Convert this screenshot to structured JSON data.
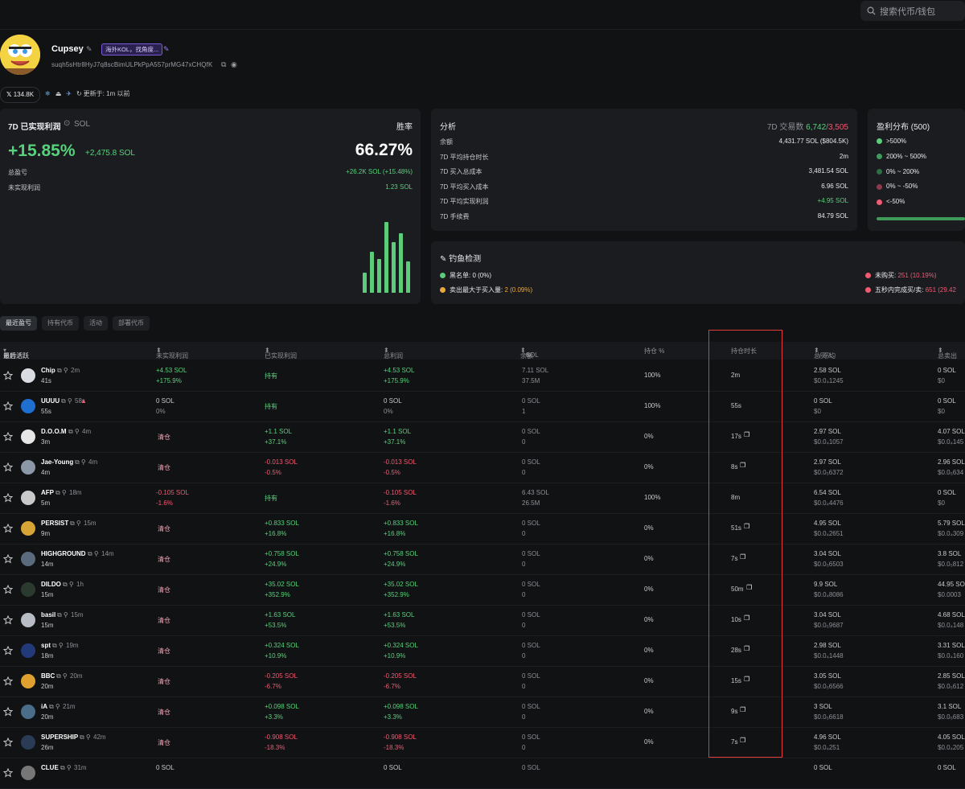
{
  "search": {
    "placeholder": "搜索代币/钱包"
  },
  "profile": {
    "name": "Cupsey",
    "tag": "海外KOL，找角度...",
    "address": "suqh5sHtr8HyJ7q8scBimULPkPpA557prMG47xCHQfK",
    "followers": "134.8K",
    "updated": "更新于: 1m 以前"
  },
  "pnl": {
    "title": "7D 已实现利润",
    "currency": "SOL",
    "winrate_label": "胜率",
    "pct": "+15.85%",
    "sol": "+2,475.8 SOL",
    "winrate": "66.27%",
    "total_label": "总盈亏",
    "total_value": "+26.2K SOL (+15.48%)",
    "unrealized_label": "未实现利润",
    "unrealized_value": "1.23 SOL",
    "bars": [
      0.28,
      0.58,
      0.48,
      1.0,
      0.72,
      0.84,
      0.44
    ]
  },
  "analysis": {
    "title": "分析",
    "trades_label": "7D 交易数",
    "buys": "6,742",
    "sells": "3,505",
    "rows": [
      {
        "k": "余额",
        "v": "4,431.77 SOL ($804.5K)"
      },
      {
        "k": "7D 平均持仓时长",
        "v": "2m"
      },
      {
        "k": "7D 买入总成本",
        "v": "3,481.54 SOL"
      },
      {
        "k": "7D 平均买入成本",
        "v": "6.96 SOL"
      },
      {
        "k": "7D 平均实现利润",
        "v": "+4.95 SOL"
      },
      {
        "k": "7D 手续费",
        "v": "84.79 SOL"
      }
    ]
  },
  "dist": {
    "title": "盈利分布 (500)",
    "items": [
      ">500%",
      "200% ~ 500%",
      "0% ~ 200%",
      "0% ~ -50%",
      "<-50%"
    ],
    "colors": [
      "#5ccb7a",
      "#3f9a5c",
      "#2f6b45",
      "#8a3a4a",
      "#f05b73"
    ]
  },
  "phishing": {
    "title": "钓鱼检测",
    "blacklist_label": "黑名单:",
    "blacklist": "0 (0%)",
    "sell_gt_buy_label": "卖出最大于买入量:",
    "sell_gt_buy": "2 (0.09%)",
    "not_bought_label": "未购买:",
    "not_bought": "251 (10.19%)",
    "fast_label": "五秒内完成买/卖:",
    "fast": "651 (29.42"
  },
  "tabs": [
    "最近盈亏",
    "持有代币",
    "活动",
    "部署代币"
  ],
  "headers": {
    "coin": "币种 / ",
    "last": "最后活跃",
    "unrealized": "未实现利润",
    "realized": "已实现利润",
    "total": "总利润",
    "balance": "余额",
    "balance_unit": "SOL",
    "hold_pct": "持仓 %",
    "hold_time": "持仓时长",
    "total_buy": "总买入",
    "avg": "/ 平均",
    "total_sell": "总卖出"
  },
  "rows": [
    {
      "name": "Chip",
      "age": "2m",
      "last": "41s",
      "u1": "+4.53 SOL",
      "u2": "+175.9%",
      "real": "持有",
      "t1": "+4.53 SOL",
      "t2": "+175.9%",
      "b1": "7.11 SOL",
      "b2": "37.5M",
      "pct": "100%",
      "hold": "2m",
      "buy1": "2.58 SOL",
      "buy2": "$0.0₄1245",
      "sell1": "0 SOL",
      "sell2": "$0",
      "color": "#d9dde3"
    },
    {
      "name": "UUUU",
      "age": "58s",
      "last": "55s",
      "u1": "0 SOL",
      "u2": "0%",
      "real": "持有",
      "t1": "0 SOL",
      "t2": "0%",
      "b1": "0 SOL",
      "b2": "1",
      "pct": "100%",
      "hold": "55s",
      "buy1": "0 SOL",
      "buy2": "$0",
      "sell1": "0 SOL",
      "sell2": "$0",
      "color": "#1f6fd1"
    },
    {
      "name": "D.O.O.M",
      "age": "4m",
      "last": "3m",
      "u1": "清仓",
      "u2": "",
      "real1": "+1.1 SOL",
      "real2": "+37.1%",
      "t1": "+1.1 SOL",
      "t2": "+37.1%",
      "b1": "0 SOL",
      "b2": "0",
      "pct": "0%",
      "hold": "17s",
      "buy1": "2.97 SOL",
      "buy2": "$0.0₄1057",
      "sell1": "4.07 SOL",
      "sell2": "$0.0₄145",
      "color": "#e6e6e6"
    },
    {
      "name": "Jae-Young",
      "age": "4m",
      "last": "4m",
      "u1": "清仓",
      "u2": "",
      "real1": "-0.013 SOL",
      "real2": "-0.5%",
      "t1": "-0.013 SOL",
      "t2": "-0.5%",
      "b1": "0 SOL",
      "b2": "0",
      "pct": "0%",
      "hold": "8s",
      "buy1": "2.97 SOL",
      "buy2": "$0.0₅6372",
      "sell1": "2.96 SOL",
      "sell2": "$0.0₅634",
      "color": "#8c97a8"
    },
    {
      "name": "AFP",
      "age": "18m",
      "last": "5m",
      "u1": "-0.105 SOL",
      "u2": "-1.6%",
      "real": "持有",
      "t1": "-0.105 SOL",
      "t2": "-1.6%",
      "b1": "6.43 SOL",
      "b2": "26.5M",
      "pct": "100%",
      "hold": "8m",
      "buy1": "6.54 SOL",
      "buy2": "$0.0₄4476",
      "sell1": "0 SOL",
      "sell2": "$0",
      "color": "#c9c9c9"
    },
    {
      "name": "PERSIST",
      "age": "15m",
      "last": "9m",
      "u1": "清仓",
      "u2": "",
      "real1": "+0.833 SOL",
      "real2": "+16.8%",
      "t1": "+0.833 SOL",
      "t2": "+16.8%",
      "b1": "0 SOL",
      "b2": "0",
      "pct": "0%",
      "hold": "51s",
      "buy1": "4.95 SOL",
      "buy2": "$0.0₄2651",
      "sell1": "5.79 SOL",
      "sell2": "$0.0₄309",
      "color": "#d6a536"
    },
    {
      "name": "HIGHGROUND",
      "age": "14m",
      "last": "14m",
      "u1": "清仓",
      "u2": "",
      "real1": "+0.758 SOL",
      "real2": "+24.9%",
      "t1": "+0.758 SOL",
      "t2": "+24.9%",
      "b1": "0 SOL",
      "b2": "0",
      "pct": "0%",
      "hold": "7s",
      "buy1": "3.04 SOL",
      "buy2": "$0.0₅6503",
      "sell1": "3.8 SOL",
      "sell2": "$0.0₅812",
      "color": "#5a6b7d"
    },
    {
      "name": "DILDO",
      "age": "1h",
      "last": "15m",
      "u1": "清仓",
      "u2": "",
      "real1": "+35.02 SOL",
      "real2": "+352.9%",
      "t1": "+35.02 SOL",
      "t2": "+352.9%",
      "b1": "0 SOL",
      "b2": "0",
      "pct": "0%",
      "hold": "50m",
      "buy1": "9.9 SOL",
      "buy2": "$0.0₄8086",
      "sell1": "44.95 SOL",
      "sell2": "$0.0003",
      "color": "#2b3a2f"
    },
    {
      "name": "basil",
      "age": "15m",
      "last": "15m",
      "u1": "清仓",
      "u2": "",
      "real1": "+1.63 SOL",
      "real2": "+53.5%",
      "t1": "+1.63 SOL",
      "t2": "+53.5%",
      "b1": "0 SOL",
      "b2": "0",
      "pct": "0%",
      "hold": "10s",
      "buy1": "3.04 SOL",
      "buy2": "$0.0₅9687",
      "sell1": "4.68 SOL",
      "sell2": "$0.0₄148",
      "color": "#b8bcc4"
    },
    {
      "name": "spt",
      "age": "19m",
      "last": "18m",
      "u1": "清仓",
      "u2": "",
      "real1": "+0.324 SOL",
      "real2": "+10.9%",
      "t1": "+0.324 SOL",
      "t2": "+10.9%",
      "b1": "0 SOL",
      "b2": "0",
      "pct": "0%",
      "hold": "28s",
      "buy1": "2.98 SOL",
      "buy2": "$0.0₄1448",
      "sell1": "3.31 SOL",
      "sell2": "$0.0₄160",
      "color": "#233a7a"
    },
    {
      "name": "BBC",
      "age": "20m",
      "last": "20m",
      "u1": "清仓",
      "u2": "",
      "real1": "-0.205 SOL",
      "real2": "-6.7%",
      "t1": "-0.205 SOL",
      "t2": "-6.7%",
      "b1": "0 SOL",
      "b2": "0",
      "pct": "0%",
      "hold": "15s",
      "buy1": "3.05 SOL",
      "buy2": "$0.0₅6566",
      "sell1": "2.85 SOL",
      "sell2": "$0.0₅612",
      "color": "#e0a030"
    },
    {
      "name": "iA",
      "age": "21m",
      "last": "20m",
      "u1": "清仓",
      "u2": "",
      "real1": "+0.098 SOL",
      "real2": "+3.3%",
      "t1": "+0.098 SOL",
      "t2": "+3.3%",
      "b1": "0 SOL",
      "b2": "0",
      "pct": "0%",
      "hold": "9s",
      "buy1": "3 SOL",
      "buy2": "$0.0₅6618",
      "sell1": "3.1 SOL",
      "sell2": "$0.0₅683",
      "color": "#4a6d8a"
    },
    {
      "name": "SUPERSHIP",
      "age": "42m",
      "last": "26m",
      "u1": "清仓",
      "u2": "",
      "real1": "-0.908 SOL",
      "real2": "-18.3%",
      "t1": "-0.908 SOL",
      "t2": "-18.3%",
      "b1": "0 SOL",
      "b2": "0",
      "pct": "0%",
      "hold": "7s",
      "buy1": "4.96 SOL",
      "buy2": "$0.0₄251",
      "sell1": "4.05 SOL",
      "sell2": "$0.0₄205",
      "color": "#2a3b55"
    },
    {
      "name": "CLUE",
      "age": "31m",
      "last": "",
      "u1": "0 SOL",
      "u2": "",
      "real": "",
      "t1": "0 SOL",
      "t2": "",
      "b1": "0 SOL",
      "b2": "",
      "pct": "",
      "hold": "",
      "buy1": "0 SOL",
      "buy2": "",
      "sell1": "0 SOL",
      "sell2": "",
      "color": "#777"
    }
  ]
}
